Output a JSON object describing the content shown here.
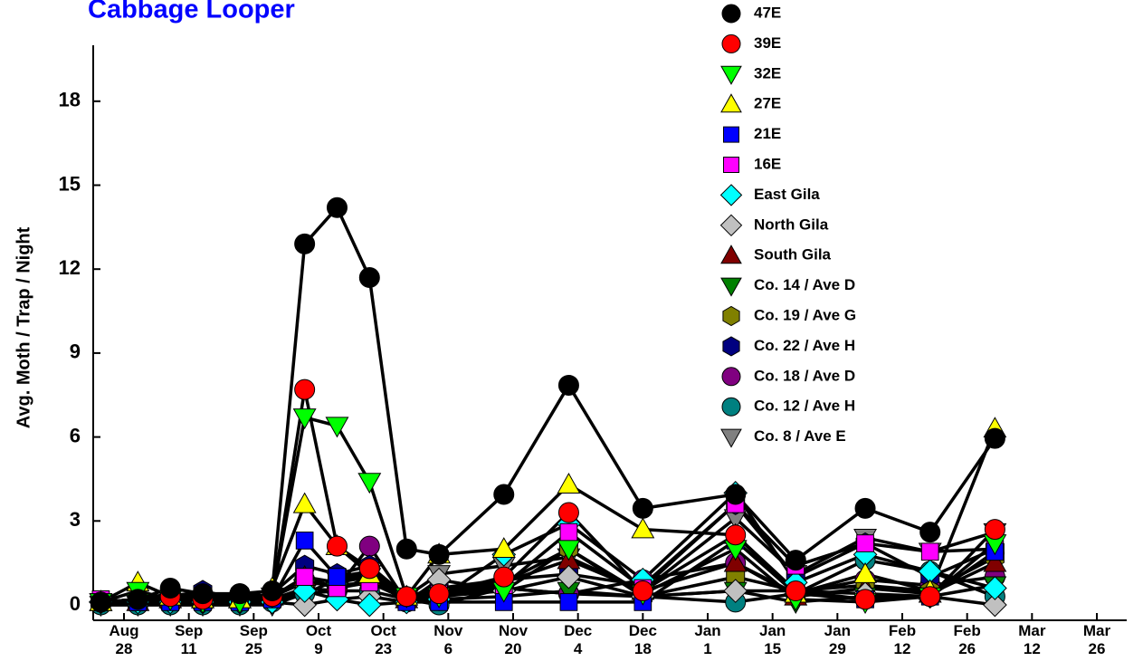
{
  "chart_data": {
    "type": "line",
    "title": "Cabbage Looper",
    "y_label": "Avg. Moth / Trap / Night",
    "x": [
      -5,
      3,
      10,
      17,
      25,
      32,
      39,
      46,
      53,
      61,
      68,
      82,
      96,
      112,
      132,
      145,
      160,
      174,
      188
    ],
    "xlim": [
      -7,
      212
    ],
    "xticks": [
      {
        "value": 0,
        "label": "Aug\n28"
      },
      {
        "value": 14,
        "label": "Sep\n11"
      },
      {
        "value": 28,
        "label": "Sep\n25"
      },
      {
        "value": 42,
        "label": "Oct\n9"
      },
      {
        "value": 56,
        "label": "Oct\n23"
      },
      {
        "value": 70,
        "label": "Nov\n6"
      },
      {
        "value": 84,
        "label": "Nov\n20"
      },
      {
        "value": 98,
        "label": "Dec\n4"
      },
      {
        "value": 112,
        "label": "Dec\n18"
      },
      {
        "value": 126,
        "label": "Jan\n1"
      },
      {
        "value": 140,
        "label": "Jan\n15"
      },
      {
        "value": 154,
        "label": "Jan\n29"
      },
      {
        "value": 168,
        "label": "Feb\n12"
      },
      {
        "value": 182,
        "label": "Feb\n26"
      },
      {
        "value": 196,
        "label": "Mar\n12"
      },
      {
        "value": 210,
        "label": "Mar\n26"
      }
    ],
    "ylim": [
      -0.55,
      20
    ],
    "yticks": [
      0,
      3,
      6,
      9,
      12,
      15,
      18
    ],
    "series": [
      {
        "name": "47E",
        "color": "#000000",
        "marker": "circle",
        "values": [
          0.1,
          0.2,
          0.6,
          0.4,
          0.4,
          0.5,
          12.9,
          14.2,
          11.7,
          2.0,
          1.8,
          3.95,
          7.85,
          3.45,
          3.95,
          1.6,
          3.45,
          2.6,
          5.95
        ]
      },
      {
        "name": "39E",
        "color": "#ff0000",
        "marker": "circle",
        "values": [
          0.1,
          0.2,
          0.3,
          0.2,
          0.4,
          0.3,
          7.7,
          2.1,
          1.3,
          0.3,
          0.4,
          1.0,
          3.3,
          0.5,
          2.5,
          0.5,
          0.2,
          0.3,
          2.7
        ]
      },
      {
        "name": "32E",
        "color": "#00ff00",
        "marker": "down",
        "values": [
          0.1,
          0.5,
          0.2,
          0.1,
          0.1,
          0.3,
          6.7,
          6.4,
          4.4,
          0.3,
          0.3,
          0.5,
          2.0,
          0.4,
          2.0,
          0.2,
          0.1,
          0.3,
          2.2
        ]
      },
      {
        "name": "27E",
        "color": "#ffff00",
        "marker": "up",
        "values": [
          0.1,
          0.8,
          0.3,
          0.2,
          0.2,
          0.6,
          3.6,
          2.1,
          1.1,
          0.3,
          1.8,
          2.0,
          4.3,
          2.7,
          2.5,
          0.4,
          1.1,
          0.5,
          6.3
        ]
      },
      {
        "name": "21E",
        "color": "#0000ff",
        "marker": "square",
        "values": [
          0.1,
          0.1,
          0.1,
          0.1,
          0.1,
          0.2,
          2.3,
          1.0,
          1.2,
          0.1,
          0.1,
          0.1,
          0.1,
          0.1,
          2.3,
          0.4,
          0.2,
          0.3,
          1.9
        ]
      },
      {
        "name": "16E",
        "color": "#ff00ff",
        "marker": "square",
        "values": [
          0.2,
          0.1,
          0.3,
          0.2,
          0.3,
          0.2,
          1.0,
          0.6,
          0.8,
          0.2,
          0.4,
          0.7,
          2.6,
          0.6,
          3.6,
          1.4,
          2.2,
          1.9,
          2.0
        ]
      },
      {
        "name": "East Gila",
        "color": "#00ffff",
        "marker": "diamond",
        "values": [
          0.1,
          0.1,
          0.1,
          0.1,
          0.1,
          0.1,
          0.5,
          0.2,
          0.0,
          0.1,
          0.2,
          1.8,
          2.9,
          0.9,
          4.0,
          0.8,
          1.8,
          1.2,
          0.6
        ]
      },
      {
        "name": "North Gila",
        "color": "#c0c0c0",
        "marker": "diamond",
        "values": [
          0.1,
          0.1,
          0.1,
          0.1,
          0.1,
          0.1,
          0.0,
          0.2,
          0.3,
          0.1,
          0.9,
          0.5,
          1.0,
          0.3,
          0.5,
          0.5,
          0.4,
          0.3,
          0.0
        ]
      },
      {
        "name": "South Gila",
        "color": "#800000",
        "marker": "up",
        "values": [
          0.1,
          0.1,
          0.2,
          0.2,
          0.2,
          0.3,
          1.0,
          0.8,
          1.0,
          0.2,
          0.5,
          0.8,
          1.6,
          0.5,
          1.5,
          0.3,
          0.6,
          0.4,
          1.5
        ]
      },
      {
        "name": "Co. 14 / Ave D",
        "color": "#008000",
        "marker": "down",
        "values": [
          0.1,
          0.1,
          0.2,
          0.1,
          0.1,
          0.2,
          0.6,
          0.5,
          1.0,
          0.2,
          0.2,
          0.3,
          0.5,
          0.3,
          0.5,
          0.1,
          0.3,
          0.3,
          0.7
        ]
      },
      {
        "name": "Co. 19 / Ave G",
        "color": "#808000",
        "marker": "hexagon",
        "values": [
          0.1,
          0.2,
          0.2,
          0.2,
          0.2,
          0.3,
          0.8,
          0.7,
          0.8,
          0.3,
          0.5,
          0.8,
          2.0,
          0.3,
          1.0,
          0.5,
          0.7,
          0.5,
          1.7
        ]
      },
      {
        "name": "Co. 22 / Ave H",
        "color": "#000080",
        "marker": "hexagon",
        "values": [
          0.1,
          0.2,
          0.3,
          0.5,
          0.2,
          0.4,
          1.4,
          1.1,
          1.4,
          0.3,
          0.6,
          0.9,
          1.1,
          0.7,
          3.6,
          1.0,
          2.2,
          1.0,
          2.0
        ]
      },
      {
        "name": "Co. 18 / Ave D",
        "color": "#800080",
        "marker": "circle",
        "values": [
          0.1,
          0.2,
          0.4,
          0.3,
          0.3,
          0.3,
          0.9,
          0.6,
          2.1,
          0.1,
          0.4,
          0.6,
          0.4,
          0.9,
          1.5,
          0.4,
          0.9,
          0.7,
          1.0
        ]
      },
      {
        "name": "Co. 12 / Ave H",
        "color": "#008080",
        "marker": "circle",
        "values": [
          0.0,
          0.0,
          0.0,
          0.0,
          0.0,
          0.1,
          0.4,
          0.5,
          0.5,
          0.2,
          0.0,
          0.6,
          0.4,
          0.3,
          0.1,
          0.4,
          1.6,
          1.2,
          0.3
        ]
      },
      {
        "name": "Co. 8 / Ave E",
        "color": "#808080",
        "marker": "down",
        "values": [
          0.0,
          0.0,
          0.0,
          0.0,
          0.0,
          0.0,
          0.4,
          0.9,
          1.1,
          0.3,
          1.1,
          1.4,
          1.7,
          0.5,
          3.1,
          1.1,
          2.4,
          1.9,
          2.6
        ]
      }
    ]
  }
}
